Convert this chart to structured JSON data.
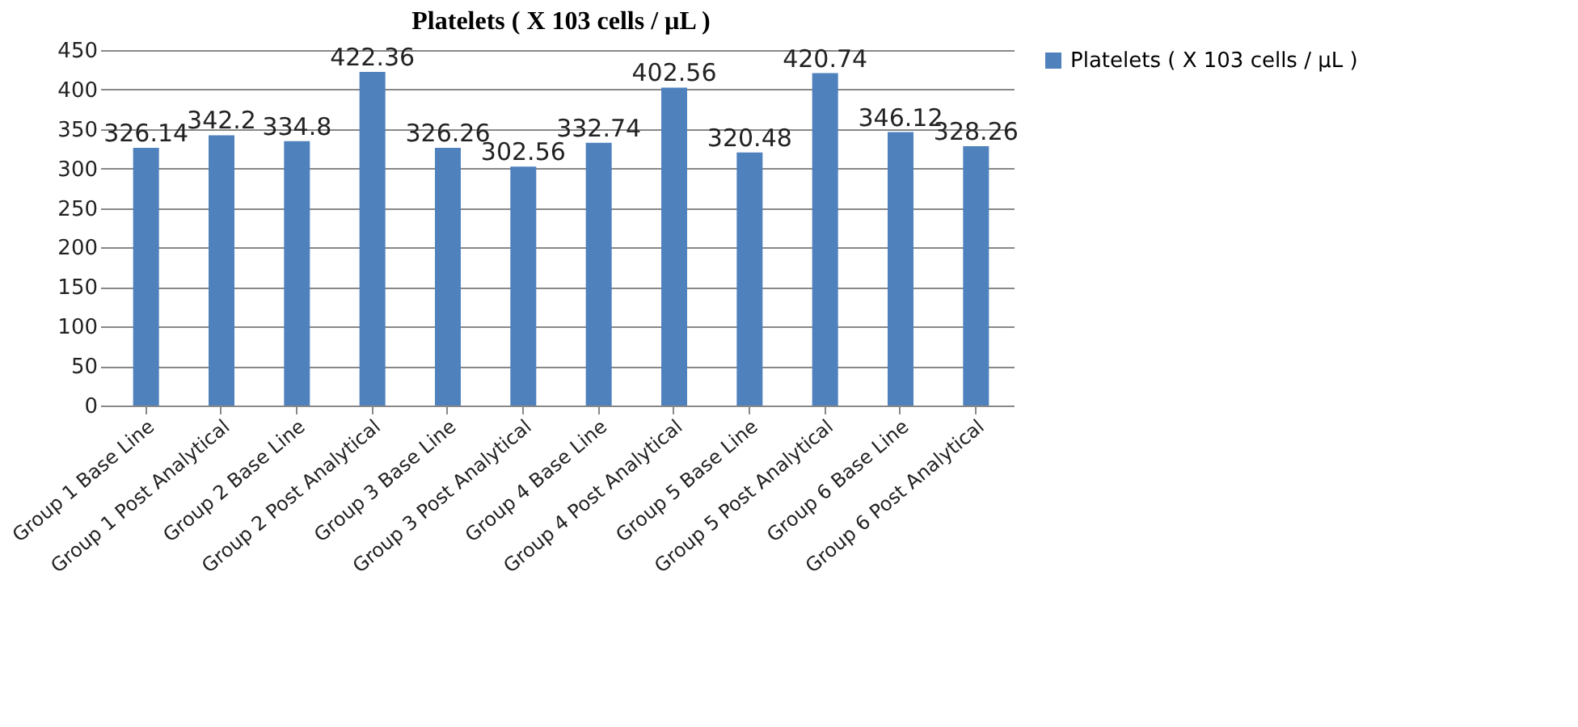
{
  "chart_data": {
    "type": "bar",
    "title": "Platelets ( X 103 cells /  µL )",
    "categories": [
      "Group 1 Base Line",
      "Group 1 Post Analytical",
      "Group 2 Base Line",
      "Group 2 Post Analytical",
      "Group 3 Base Line",
      "Group 3 Post Analytical",
      "Group 4 Base Line",
      "Group 4 Post Analytical",
      "Group 5 Base Line",
      "Group 5 Post Analytical",
      "Group 6 Base Line",
      "Group 6 Post Analytical"
    ],
    "series": [
      {
        "name": "Platelets ( X 103 cells /  µL )",
        "color": "#4f81bd",
        "values": [
          326.14,
          342.2,
          334.8,
          422.36,
          326.26,
          302.56,
          332.74,
          402.56,
          320.48,
          420.74,
          346.12,
          328.26
        ]
      }
    ],
    "ylim": [
      0,
      450
    ],
    "yticks": [
      0,
      50,
      100,
      150,
      200,
      250,
      300,
      350,
      400,
      450
    ],
    "grid": "y",
    "legend": "right",
    "data_labels": true
  }
}
